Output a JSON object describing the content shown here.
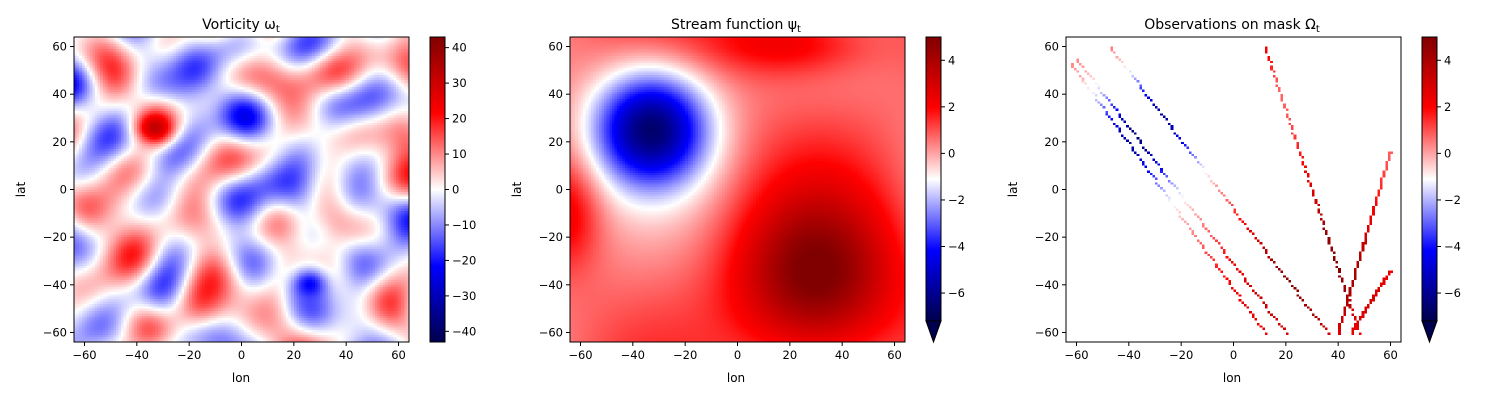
{
  "colors": {
    "colormap": [
      "#00004c",
      "#0000ff",
      "#ffffff",
      "#ff0000",
      "#800000"
    ]
  },
  "chart_data": [
    {
      "type": "heatmap",
      "title": "Vorticity ω",
      "title_sub": "t",
      "xlabel": "lon",
      "ylabel": "lat",
      "xlim": [
        -64,
        64
      ],
      "ylim": [
        -64,
        64
      ],
      "xticks": [
        "−60",
        "−40",
        "−20",
        "0",
        "20",
        "40",
        "60"
      ],
      "xtick_values": [
        -60,
        -40,
        -20,
        0,
        20,
        40,
        60
      ],
      "yticks": [
        "−60",
        "−40",
        "−20",
        "0",
        "20",
        "40",
        "60"
      ],
      "ytick_values": [
        -60,
        -40,
        -20,
        0,
        20,
        40,
        60
      ],
      "colorbar": {
        "vmin": -43,
        "vmax": 43,
        "extend": "none",
        "tick_values": [
          -40,
          -30,
          -20,
          -10,
          0,
          10,
          20,
          30,
          40
        ],
        "tick_labels": [
          "−40",
          "−30",
          "−20",
          "−10",
          "0",
          "10",
          "20",
          "30",
          "40"
        ]
      },
      "features": {
        "vortices": [
          {
            "lon": -33,
            "lat": 26,
            "value": 32,
            "radius": 8
          },
          {
            "lon": 26,
            "lat": -40,
            "value": -22,
            "radius": 7
          }
        ]
      }
    },
    {
      "type": "heatmap",
      "title": "Stream function ψ",
      "title_sub": "t",
      "xlabel": "lon",
      "ylabel": "lat",
      "xlim": [
        -64,
        64
      ],
      "ylim": [
        -64,
        64
      ],
      "xticks": [
        "−60",
        "−40",
        "−20",
        "0",
        "20",
        "40",
        "60"
      ],
      "xtick_values": [
        -60,
        -40,
        -20,
        0,
        20,
        40,
        60
      ],
      "yticks": [
        "−60",
        "−40",
        "−20",
        "0",
        "20",
        "40",
        "60"
      ],
      "ytick_values": [
        -60,
        -40,
        -20,
        0,
        20,
        40,
        60
      ],
      "colorbar": {
        "vmin": -7.2,
        "vmax": 5,
        "extend": "min",
        "tick_values": [
          -6,
          -4,
          -2,
          0,
          2,
          4
        ],
        "tick_labels": [
          "−6",
          "−4",
          "−2",
          "0",
          "2",
          "4"
        ]
      },
      "features": {
        "extrema": [
          {
            "lon": -33,
            "lat": 26,
            "value": -6.8
          },
          {
            "lon": 30,
            "lat": -38,
            "value": 4.5
          }
        ]
      }
    },
    {
      "type": "heatmap",
      "title": "Observations on mask Ω",
      "title_sub": "t",
      "xlabel": "lon",
      "ylabel": "lat",
      "xlim": [
        -64,
        64
      ],
      "ylim": [
        -64,
        64
      ],
      "xticks": [
        "−60",
        "−40",
        "−20",
        "0",
        "20",
        "40",
        "60"
      ],
      "xtick_values": [
        -60,
        -40,
        -20,
        0,
        20,
        40,
        60
      ],
      "yticks": [
        "−60",
        "−40",
        "−20",
        "0",
        "20",
        "40",
        "60"
      ],
      "ytick_values": [
        -60,
        -40,
        -20,
        0,
        20,
        40,
        60
      ],
      "colorbar": {
        "vmin": -7.2,
        "vmax": 5,
        "extend": "min",
        "tick_values": [
          -6,
          -4,
          -2,
          0,
          2,
          4
        ],
        "tick_labels": [
          "−6",
          "−4",
          "−2",
          "0",
          "2",
          "4"
        ]
      },
      "features": {
        "tracks": [
          {
            "from": [
              -62,
              53
            ],
            "to": [
              12,
              -60
            ]
          },
          {
            "from": [
              -60,
              55
            ],
            "to": [
              20,
              -60
            ]
          },
          {
            "from": [
              -47,
              60
            ],
            "to": [
              36,
              -60
            ]
          },
          {
            "from": [
              12,
              60
            ],
            "to": [
              48,
              -60
            ]
          },
          {
            "from": [
              60,
              16
            ],
            "to": [
              40,
              -60
            ]
          },
          {
            "from": [
              60,
              -34
            ],
            "to": [
              45,
              -60
            ]
          }
        ]
      }
    }
  ]
}
